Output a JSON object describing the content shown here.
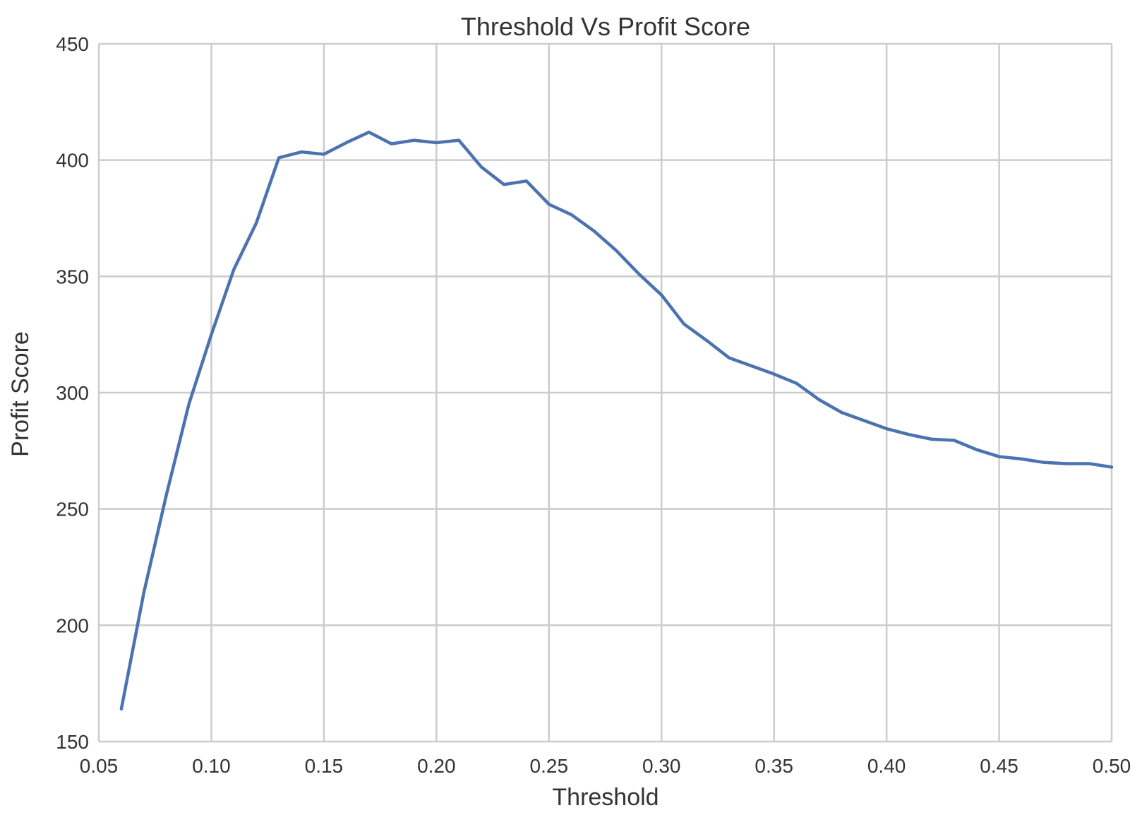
{
  "chart_data": {
    "type": "line",
    "title": "Threshold Vs Profit Score",
    "xlabel": "Threshold",
    "ylabel": "Profit Score",
    "xlim": [
      0.05,
      0.5
    ],
    "ylim": [
      150,
      450
    ],
    "xticks": [
      0.05,
      0.1,
      0.15,
      0.2,
      0.25,
      0.3,
      0.35,
      0.4,
      0.45,
      0.5
    ],
    "xtick_labels": [
      "0.05",
      "0.10",
      "0.15",
      "0.20",
      "0.25",
      "0.30",
      "0.35",
      "0.40",
      "0.45",
      "0.50"
    ],
    "yticks": [
      150,
      200,
      250,
      300,
      350,
      400,
      450
    ],
    "ytick_labels": [
      "150",
      "200",
      "250",
      "300",
      "350",
      "400",
      "450"
    ],
    "grid": true,
    "series": [
      {
        "color": "#4c72b0",
        "x": [
          0.06,
          0.07,
          0.08,
          0.09,
          0.1,
          0.11,
          0.12,
          0.13,
          0.14,
          0.15,
          0.16,
          0.17,
          0.18,
          0.19,
          0.2,
          0.21,
          0.22,
          0.23,
          0.24,
          0.25,
          0.26,
          0.27,
          0.28,
          0.29,
          0.3,
          0.31,
          0.32,
          0.33,
          0.34,
          0.35,
          0.36,
          0.37,
          0.38,
          0.39,
          0.4,
          0.41,
          0.42,
          0.43,
          0.44,
          0.45,
          0.46,
          0.47,
          0.48,
          0.49,
          0.5
        ],
        "y": [
          164,
          214,
          256,
          295,
          325,
          353,
          373,
          401,
          403.5,
          402.5,
          407.5,
          412,
          407,
          408.5,
          407.5,
          408.5,
          397,
          389.5,
          391,
          381,
          376.5,
          369.5,
          361,
          351,
          342,
          329.5,
          322.5,
          315,
          311.5,
          308,
          304,
          297,
          291.5,
          288,
          284.5,
          282,
          280,
          279.5,
          275.5,
          272.5,
          271.5,
          270,
          269.5,
          269.5,
          268
        ]
      }
    ]
  }
}
